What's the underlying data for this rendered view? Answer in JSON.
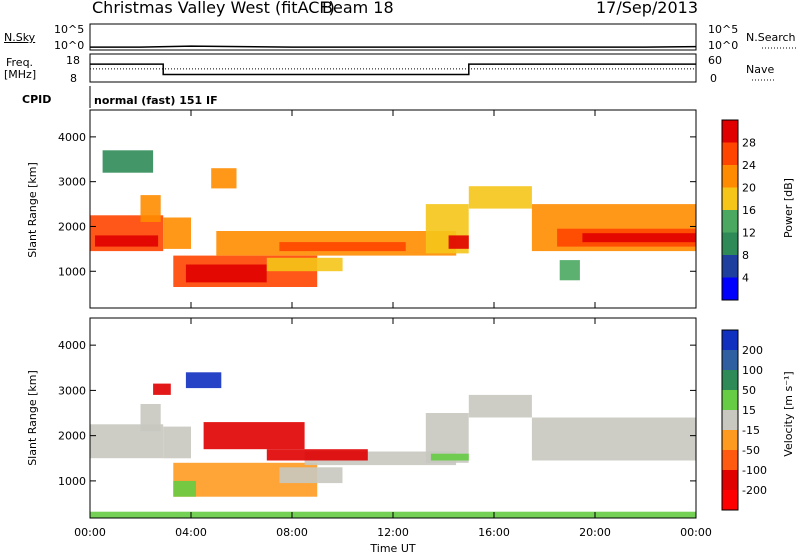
{
  "header": {
    "site": "Christmas Valley West (fitACF)",
    "beam": "Beam 18",
    "date": "17/Sep/2013"
  },
  "strips": {
    "nsky_label": "N.Sky",
    "nsky_ticks": [
      "10^5",
      "10^0"
    ],
    "nsearch_label": "N.Search",
    "nsearch_ticks": [
      "10^5",
      "10^0"
    ],
    "freq_label_1": "Freq.",
    "freq_label_2": "[MHz]",
    "freq_ticks": [
      "18",
      "8"
    ],
    "nave_label": "Nave",
    "nave_ticks": [
      "60",
      "0"
    ],
    "cpid_label": "CPID",
    "cpid_value": "normal (fast) 151 IF"
  },
  "axes": {
    "ylabel": "Slant Range [km]",
    "xlabel": "Time UT",
    "yticks": [
      "1000",
      "2000",
      "3000",
      "4000"
    ],
    "xticks": [
      "00:00",
      "04:00",
      "08:00",
      "12:00",
      "16:00",
      "20:00",
      "00:00"
    ]
  },
  "power_colorbar": {
    "label": "Power [dB]",
    "ticks": [
      "4",
      "8",
      "12",
      "16",
      "20",
      "24",
      "28"
    ],
    "colors": [
      "#0000ff",
      "#1f3f9f",
      "#2e8b57",
      "#4aa860",
      "#f5c518",
      "#ff8c00",
      "#ff4500",
      "#e00000"
    ]
  },
  "velocity_colorbar": {
    "label": "Velocity [m s⁻¹]",
    "ticks": [
      "200",
      "100",
      "50",
      "15",
      "-15",
      "-50",
      "-100",
      "-200"
    ],
    "colors": [
      "#1030c0",
      "#2f5fa0",
      "#2e8b57",
      "#66cc44",
      "#c8c8c0",
      "#ff9a20",
      "#ff5a10",
      "#e00000",
      "#ff0000"
    ]
  },
  "chart_data": [
    {
      "type": "line",
      "name": "N.Sky / N.Search",
      "x": [
        0,
        2,
        4,
        6,
        8,
        10,
        12,
        14,
        16,
        18,
        20,
        22,
        24
      ],
      "y_log10": [
        0.4,
        0.4,
        0.6,
        0.5,
        0.4,
        0.4,
        0.4,
        0.4,
        0.4,
        0.4,
        0.4,
        0.4,
        0.5
      ]
    },
    {
      "type": "line",
      "name": "Freq / Nave",
      "freq_segments": [
        {
          "t0": 0,
          "t1": 2.9,
          "mhz": 14.5
        },
        {
          "t0": 2.9,
          "t1": 15.0,
          "mhz": 10.5
        },
        {
          "t0": 15.0,
          "t1": 24,
          "mhz": 14.5
        }
      ],
      "nave": 28
    },
    {
      "type": "heatmap",
      "panel": "power",
      "xlim": [
        0,
        24
      ],
      "ylim": [
        180,
        4600
      ],
      "blobs": [
        {
          "t0": 0.0,
          "t1": 2.9,
          "r0": 1450,
          "r1": 2250,
          "level": 6
        },
        {
          "t0": 0.2,
          "t1": 2.7,
          "r0": 1550,
          "r1": 1800,
          "level": 7
        },
        {
          "t0": 0.5,
          "t1": 2.5,
          "r0": 3200,
          "r1": 3700,
          "level": 2
        },
        {
          "t0": 2.0,
          "t1": 2.8,
          "r0": 2100,
          "r1": 2700,
          "level": 5
        },
        {
          "t0": 2.9,
          "t1": 4.0,
          "r0": 1500,
          "r1": 2200,
          "level": 5
        },
        {
          "t0": 4.8,
          "t1": 5.8,
          "r0": 2850,
          "r1": 3300,
          "level": 5
        },
        {
          "t0": 3.3,
          "t1": 9.0,
          "r0": 650,
          "r1": 1350,
          "level": 6
        },
        {
          "t0": 3.8,
          "t1": 7.0,
          "r0": 750,
          "r1": 1150,
          "level": 7
        },
        {
          "t0": 7.0,
          "t1": 10.0,
          "r0": 1000,
          "r1": 1300,
          "level": 4
        },
        {
          "t0": 5.0,
          "t1": 14.5,
          "r0": 1350,
          "r1": 1900,
          "level": 5
        },
        {
          "t0": 7.5,
          "t1": 12.5,
          "r0": 1450,
          "r1": 1650,
          "level": 6
        },
        {
          "t0": 13.3,
          "t1": 15.0,
          "r0": 1400,
          "r1": 2500,
          "level": 4
        },
        {
          "t0": 14.2,
          "t1": 15.0,
          "r0": 1500,
          "r1": 1800,
          "level": 7
        },
        {
          "t0": 15.0,
          "t1": 17.5,
          "r0": 2400,
          "r1": 2900,
          "level": 4
        },
        {
          "t0": 17.5,
          "t1": 24.0,
          "r0": 1450,
          "r1": 2500,
          "level": 5
        },
        {
          "t0": 18.5,
          "t1": 24.0,
          "r0": 1550,
          "r1": 1950,
          "level": 6
        },
        {
          "t0": 19.5,
          "t1": 24.0,
          "r0": 1650,
          "r1": 1850,
          "level": 7
        },
        {
          "t0": 18.6,
          "t1": 19.4,
          "r0": 800,
          "r1": 1250,
          "level": 3
        }
      ]
    },
    {
      "type": "heatmap",
      "panel": "velocity",
      "xlim": [
        0,
        24
      ],
      "ylim": [
        180,
        4600
      ],
      "blobs": [
        {
          "t0": 0.0,
          "t1": 2.9,
          "r0": 1500,
          "r1": 2250,
          "level": 4
        },
        {
          "t0": 2.0,
          "t1": 2.8,
          "r0": 2100,
          "r1": 2700,
          "level": 4
        },
        {
          "t0": 2.9,
          "t1": 4.0,
          "r0": 1500,
          "r1": 2200,
          "level": 4
        },
        {
          "t0": 3.8,
          "t1": 5.2,
          "r0": 3050,
          "r1": 3400,
          "level": 0
        },
        {
          "t0": 2.5,
          "t1": 3.2,
          "r0": 2900,
          "r1": 3150,
          "level": 7
        },
        {
          "t0": 3.3,
          "t1": 9.0,
          "r0": 650,
          "r1": 1400,
          "level": 5
        },
        {
          "t0": 3.3,
          "t1": 4.2,
          "r0": 650,
          "r1": 1000,
          "level": 3
        },
        {
          "t0": 7.5,
          "t1": 10.0,
          "r0": 950,
          "r1": 1300,
          "level": 4
        },
        {
          "t0": 4.5,
          "t1": 8.5,
          "r0": 1700,
          "r1": 2300,
          "level": 7
        },
        {
          "t0": 8.5,
          "t1": 14.5,
          "r0": 1350,
          "r1": 1650,
          "level": 4
        },
        {
          "t0": 7.0,
          "t1": 11.0,
          "r0": 1450,
          "r1": 1700,
          "level": 7
        },
        {
          "t0": 13.3,
          "t1": 15.0,
          "r0": 1400,
          "r1": 2500,
          "level": 4
        },
        {
          "t0": 13.5,
          "t1": 15.0,
          "r0": 1450,
          "r1": 1600,
          "level": 3
        },
        {
          "t0": 15.0,
          "t1": 17.5,
          "r0": 2400,
          "r1": 2900,
          "level": 4
        },
        {
          "t0": 17.5,
          "t1": 24.0,
          "r0": 1450,
          "r1": 2400,
          "level": 4
        },
        {
          "t0": 0.0,
          "t1": 24.0,
          "r0": 180,
          "r1": 320,
          "level": 3
        }
      ]
    }
  ]
}
